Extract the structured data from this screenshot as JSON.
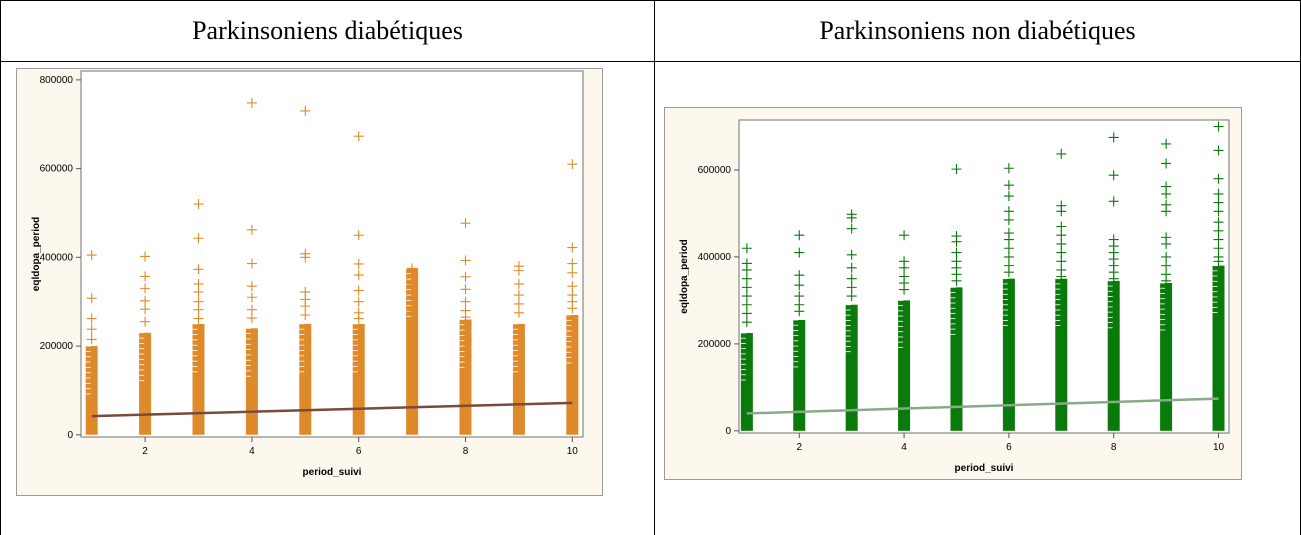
{
  "table": {
    "headers": [
      "Parkinsoniens diabétiques",
      "Parkinsoniens non diabétiques"
    ]
  },
  "chart_data": [
    {
      "type": "scatter",
      "title": "",
      "xlabel": "period_suivi",
      "ylabel": "eqldopa_period",
      "xlim": [
        0.8,
        10.2
      ],
      "ylim": [
        -5000,
        820000
      ],
      "xticks": [
        2,
        4,
        6,
        8,
        10
      ],
      "yticks": [
        0,
        200000,
        400000,
        600000,
        800000
      ],
      "marker_color": "#df8a2a",
      "line_color": "#7a4a3a",
      "dense_max": [
        200000,
        230000,
        250000,
        240000,
        250000,
        250000,
        375000,
        260000,
        250000,
        270000
      ],
      "points": [
        {
          "x": 1,
          "y": [
            405000,
            308000,
            262000,
            238000,
            215000
          ]
        },
        {
          "x": 2,
          "y": [
            402000,
            357000,
            330000,
            302000,
            283000,
            255000
          ]
        },
        {
          "x": 3,
          "y": [
            520000,
            443000,
            373000,
            340000,
            322000,
            300000,
            282000,
            262000
          ]
        },
        {
          "x": 4,
          "y": [
            748000,
            462000,
            386000,
            335000,
            310000,
            282000,
            263000
          ]
        },
        {
          "x": 5,
          "y": [
            730000,
            408000,
            400000,
            322000,
            305000,
            290000,
            270000
          ]
        },
        {
          "x": 6,
          "y": [
            673000,
            450000,
            385000,
            360000,
            325000,
            300000,
            275000,
            262000
          ]
        },
        {
          "x": 7,
          "y": [
            375000,
            360000,
            340000,
            320000,
            300000,
            280000
          ]
        },
        {
          "x": 8,
          "y": [
            477000,
            393000,
            356000,
            328000,
            300000,
            280000,
            265000
          ]
        },
        {
          "x": 9,
          "y": [
            380000,
            370000,
            340000,
            315000,
            295000,
            275000
          ]
        },
        {
          "x": 10,
          "y": [
            610000,
            422000,
            386000,
            365000,
            335000,
            315000,
            300000,
            285000
          ]
        }
      ],
      "trend": {
        "x": [
          1,
          10
        ],
        "y": [
          42000,
          72000
        ]
      }
    },
    {
      "type": "scatter",
      "title": "",
      "xlabel": "period_suivi",
      "ylabel": "eqldopa_period",
      "xlim": [
        0.85,
        10.2
      ],
      "ylim": [
        -5000,
        715000
      ],
      "xticks": [
        2,
        4,
        6,
        8,
        10
      ],
      "yticks": [
        0,
        200000,
        400000,
        600000
      ],
      "marker_color": "#0a7a0a",
      "line_color": "#8aa88a",
      "dense_max": [
        225000,
        255000,
        290000,
        300000,
        330000,
        350000,
        350000,
        345000,
        340000,
        380000
      ],
      "points": [
        {
          "x": 1,
          "y": [
            420000,
            385000,
            370000,
            350000,
            330000,
            310000,
            290000,
            270000,
            250000
          ]
        },
        {
          "x": 2,
          "y": [
            450000,
            410000,
            358000,
            335000,
            310000,
            290000,
            275000
          ]
        },
        {
          "x": 3,
          "y": [
            498000,
            490000,
            465000,
            405000,
            375000,
            350000,
            330000,
            310000
          ]
        },
        {
          "x": 4,
          "y": [
            450000,
            390000,
            375000,
            355000,
            340000,
            325000
          ]
        },
        {
          "x": 5,
          "y": [
            602000,
            448000,
            435000,
            410000,
            390000,
            375000,
            360000,
            345000
          ]
        },
        {
          "x": 6,
          "y": [
            604000,
            565000,
            540000,
            505000,
            485000,
            455000,
            440000,
            420000,
            400000,
            380000,
            365000
          ]
        },
        {
          "x": 7,
          "y": [
            637000,
            518000,
            505000,
            470000,
            450000,
            430000,
            410000,
            390000,
            370000,
            355000
          ]
        },
        {
          "x": 8,
          "y": [
            675000,
            588000,
            528000,
            440000,
            425000,
            410000,
            395000,
            380000,
            365000,
            350000
          ]
        },
        {
          "x": 9,
          "y": [
            660000,
            615000,
            562000,
            545000,
            520000,
            505000,
            445000,
            430000,
            400000,
            380000,
            360000,
            345000
          ]
        },
        {
          "x": 10,
          "y": [
            700000,
            645000,
            580000,
            545000,
            525000,
            505000,
            480000,
            460000,
            440000,
            420000,
            400000,
            390000
          ]
        }
      ],
      "trend": {
        "x": [
          1,
          10
        ],
        "y": [
          40000,
          74000
        ]
      }
    }
  ]
}
